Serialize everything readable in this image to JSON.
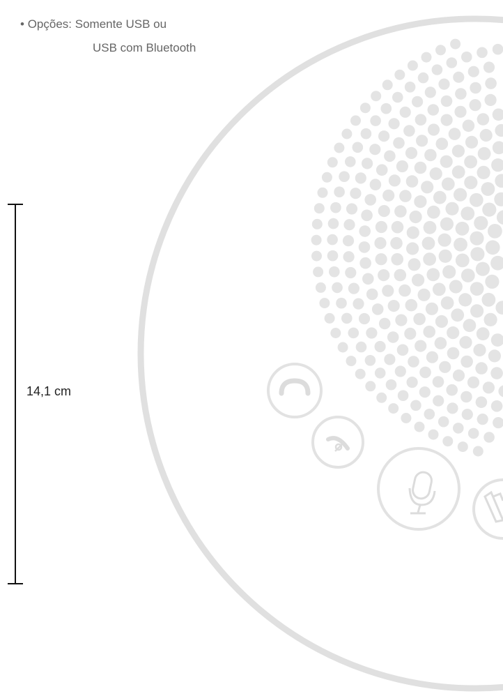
{
  "spec": {
    "bullet": "•",
    "label": "Opções:",
    "option1": "Somente USB ou",
    "option2": "USB com Bluetooth"
  },
  "dimension": {
    "value": "14,1 cm"
  },
  "colors": {
    "outline": "#e0e0e0",
    "dots": "#e4e4e4",
    "dimension_line": "#111111",
    "text": "#666666"
  },
  "icons": {
    "answer_button": "phone-answer-icon",
    "hangup_button": "phone-hangup-icon",
    "mute_button": "microphone-icon",
    "volume_button": "speaker-icon"
  }
}
